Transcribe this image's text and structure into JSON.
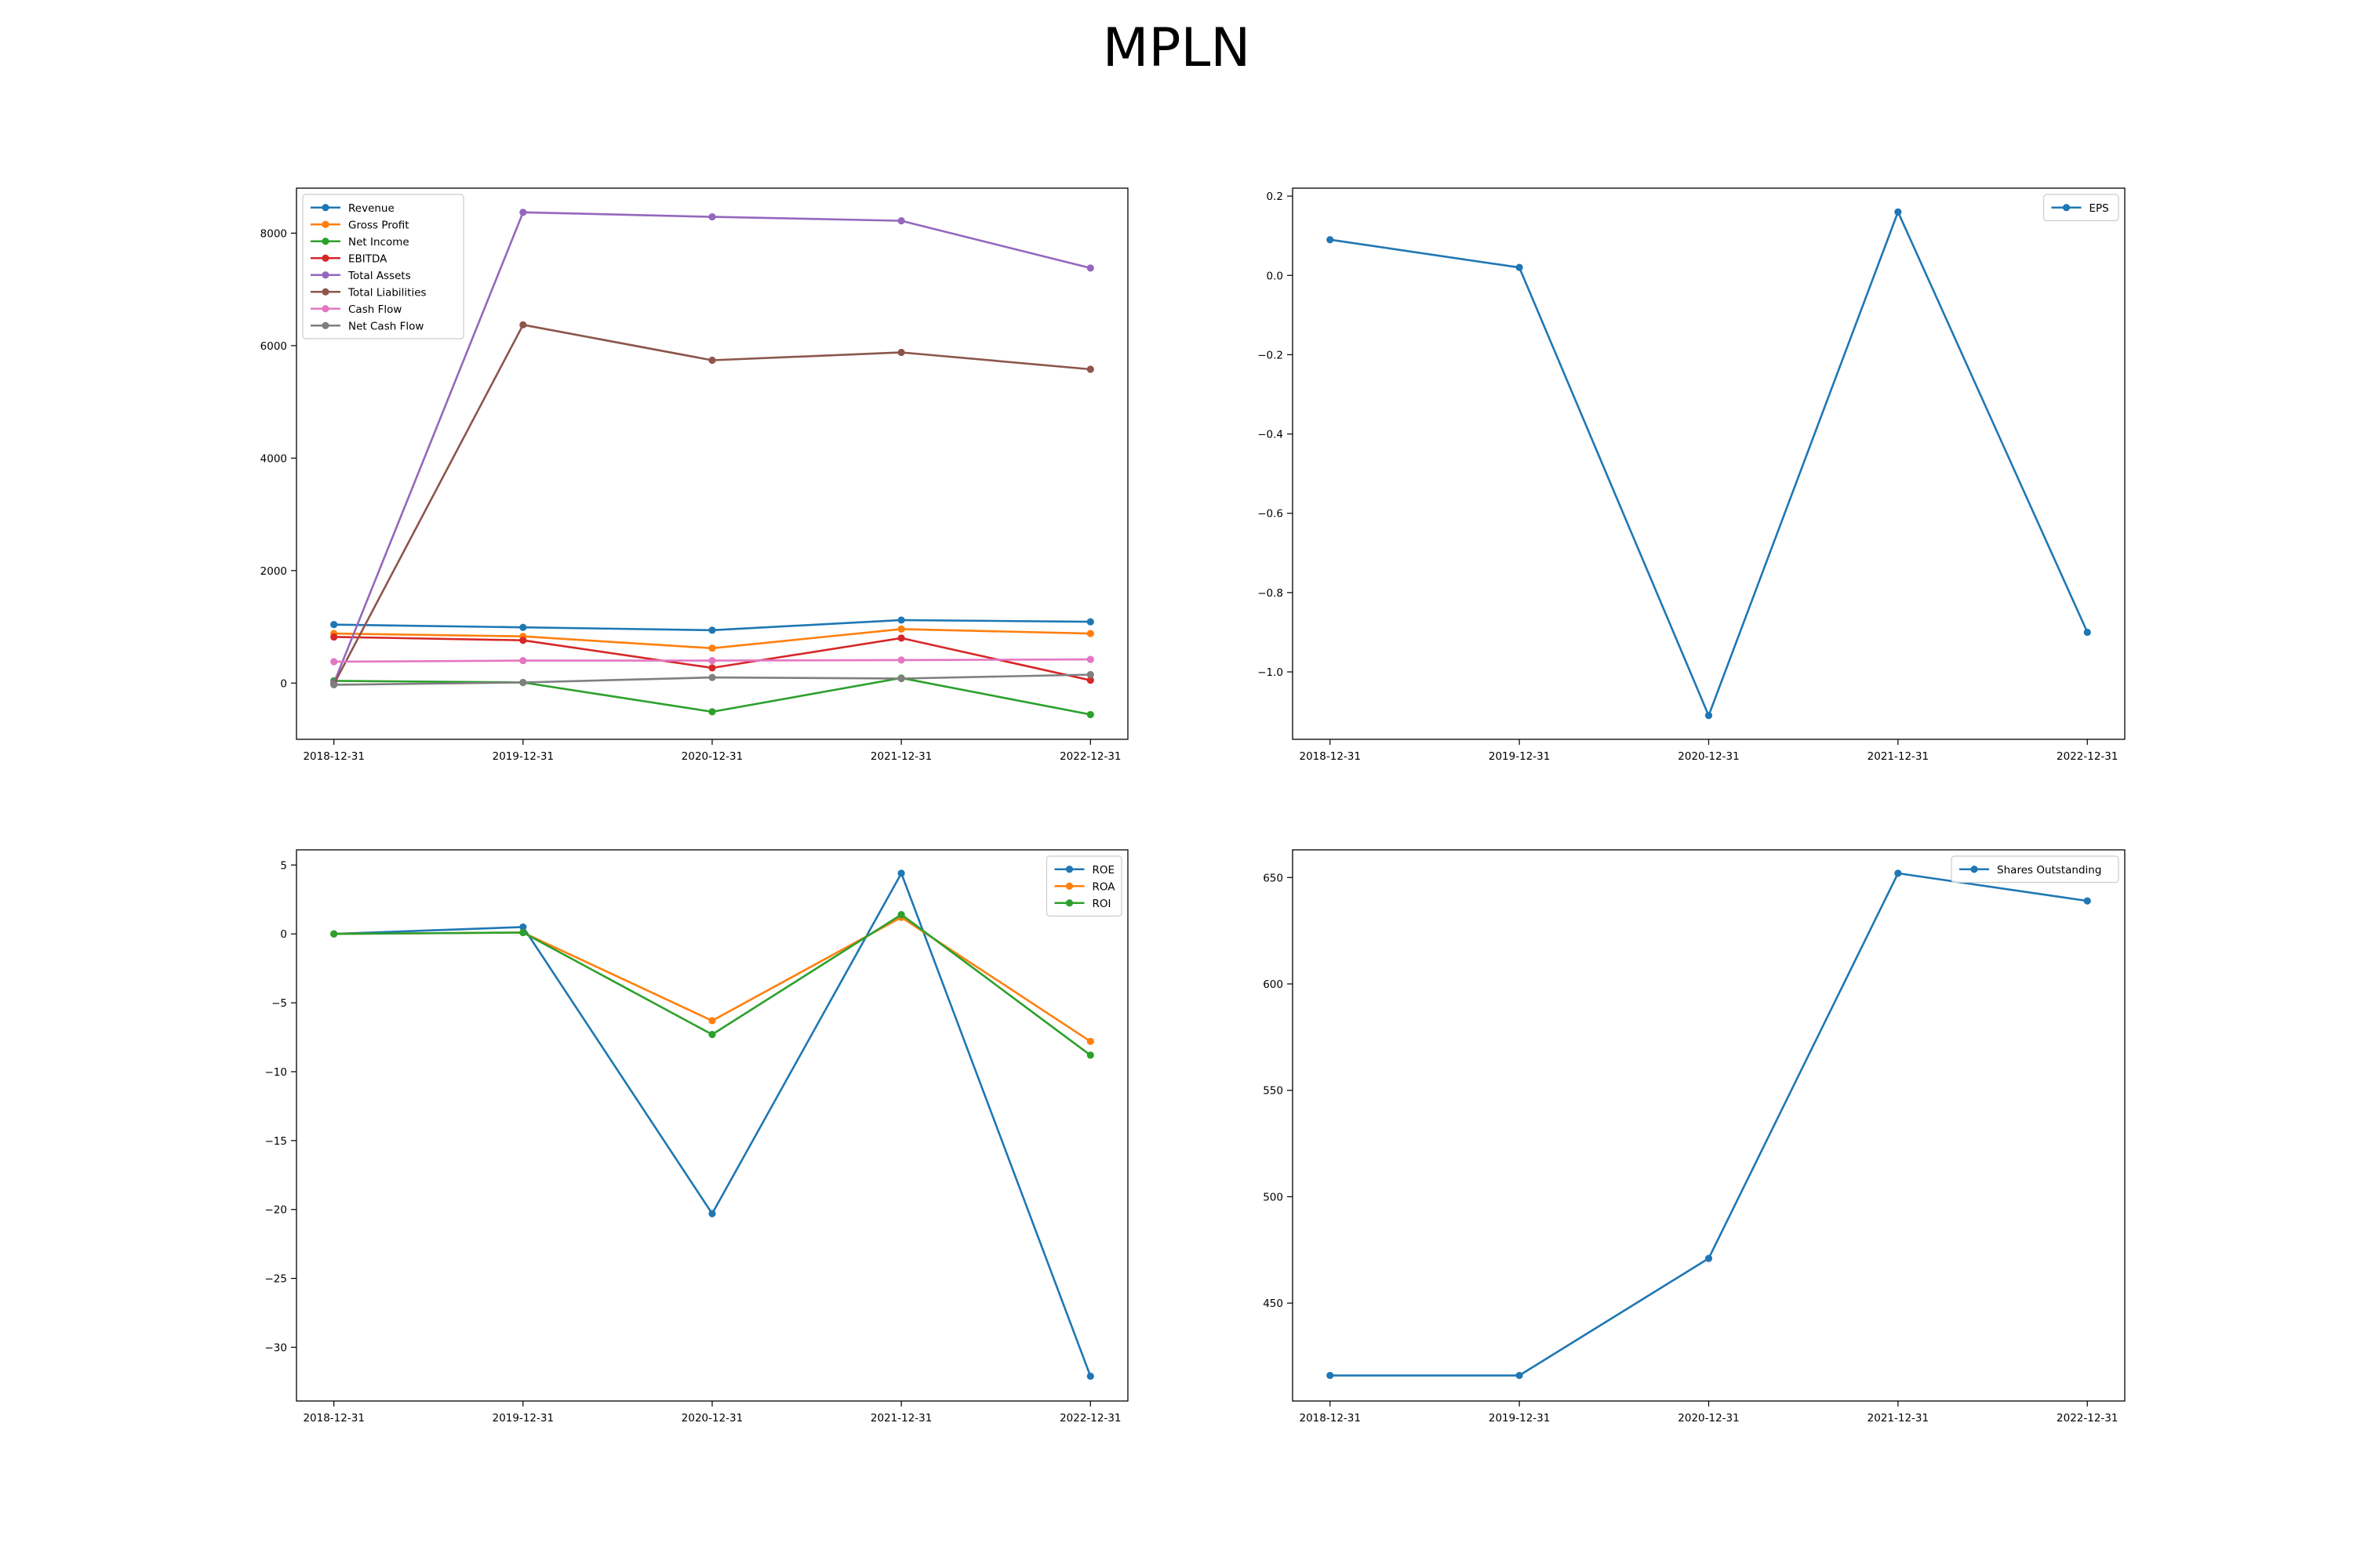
{
  "title": "MPLN",
  "chart_data": [
    {
      "type": "line",
      "categories": [
        "2018-12-31",
        "2019-12-31",
        "2020-12-31",
        "2021-12-31",
        "2022-12-31"
      ],
      "ylim": [
        -1000,
        8800
      ],
      "yticks": [
        0,
        2000,
        4000,
        6000,
        8000
      ],
      "legend": "upper left",
      "series": [
        {
          "name": "Revenue",
          "color": "#1f77b4",
          "values": [
            1040,
            990,
            940,
            1120,
            1090
          ]
        },
        {
          "name": "Gross Profit",
          "color": "#ff7f0e",
          "values": [
            880,
            830,
            620,
            960,
            880
          ]
        },
        {
          "name": "Net Income",
          "color": "#2ca02c",
          "values": [
            40,
            10,
            -510,
            90,
            -560
          ]
        },
        {
          "name": "EBITDA",
          "color": "#d62728",
          "values": [
            820,
            760,
            270,
            800,
            50
          ]
        },
        {
          "name": "Total Assets",
          "color": "#9467bd",
          "values": [
            0,
            8370,
            8290,
            8220,
            7380
          ]
        },
        {
          "name": "Total Liabilities",
          "color": "#8c564b",
          "values": [
            -20,
            6370,
            5740,
            5880,
            5580
          ]
        },
        {
          "name": "Cash Flow",
          "color": "#e377c2",
          "values": [
            380,
            400,
            400,
            410,
            420
          ]
        },
        {
          "name": "Net Cash Flow",
          "color": "#7f7f7f",
          "values": [
            -30,
            10,
            100,
            80,
            150
          ]
        }
      ]
    },
    {
      "type": "line",
      "categories": [
        "2018-12-31",
        "2019-12-31",
        "2020-12-31",
        "2021-12-31",
        "2022-12-31"
      ],
      "ylim": [
        -1.17,
        0.22
      ],
      "yticks": [
        0.2,
        0.0,
        -0.2,
        -0.4,
        -0.6,
        -0.8,
        -1.0
      ],
      "ytick_labels": [
        "0.2",
        "0.0",
        "−0.2",
        "−0.4",
        "−0.6",
        "−0.8",
        "−1.0"
      ],
      "legend": "upper right",
      "series": [
        {
          "name": "EPS",
          "color": "#1f77b4",
          "values": [
            0.09,
            0.02,
            -1.11,
            0.16,
            -0.9
          ]
        }
      ]
    },
    {
      "type": "line",
      "categories": [
        "2018-12-31",
        "2019-12-31",
        "2020-12-31",
        "2021-12-31",
        "2022-12-31"
      ],
      "ylim": [
        -33.9,
        6.1
      ],
      "yticks": [
        5,
        0,
        -5,
        -10,
        -15,
        -20,
        -25,
        -30
      ],
      "ytick_labels": [
        "5",
        "0",
        "−5",
        "−10",
        "−15",
        "−20",
        "−25",
        "−30"
      ],
      "legend": "upper right",
      "series": [
        {
          "name": "ROE",
          "color": "#1f77b4",
          "values": [
            0.0,
            0.5,
            -20.3,
            4.4,
            -32.1
          ]
        },
        {
          "name": "ROA",
          "color": "#ff7f0e",
          "values": [
            0.0,
            0.1,
            -6.3,
            1.2,
            -7.8
          ]
        },
        {
          "name": "ROI",
          "color": "#2ca02c",
          "values": [
            0.0,
            0.1,
            -7.3,
            1.4,
            -8.8
          ]
        }
      ]
    },
    {
      "type": "line",
      "categories": [
        "2018-12-31",
        "2019-12-31",
        "2020-12-31",
        "2021-12-31",
        "2022-12-31"
      ],
      "ylim": [
        404,
        663
      ],
      "yticks": [
        650,
        600,
        550,
        500,
        450
      ],
      "legend": "upper right",
      "series": [
        {
          "name": "Shares Outstanding",
          "color": "#1f77b4",
          "values": [
            416,
            416,
            471,
            652,
            639
          ]
        }
      ]
    }
  ]
}
